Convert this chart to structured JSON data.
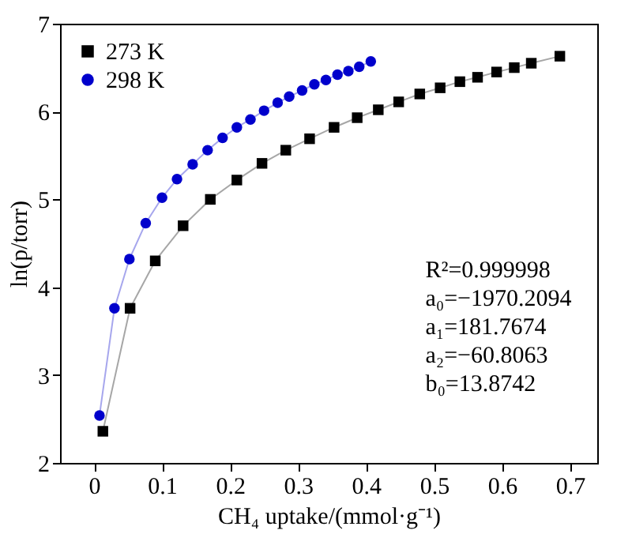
{
  "chart_data": {
    "type": "line",
    "xlabel": "CH₄ uptake/(mmol·g⁻¹)",
    "ylabel": "ln(p/torr)",
    "xlim": [
      -0.05,
      0.74
    ],
    "xticks": [
      0,
      0.1,
      0.2,
      0.3,
      0.4,
      0.5,
      0.6,
      0.7
    ],
    "ylim": [
      2,
      7
    ],
    "yticks": [
      2,
      3,
      4,
      5,
      6,
      7
    ],
    "grid": false,
    "legend": "top left",
    "line_style": "solid",
    "series": [
      {
        "name": "273 K",
        "color": "#000000",
        "marker": "square",
        "x": [
          0.013,
          0.053,
          0.09,
          0.131,
          0.171,
          0.21,
          0.247,
          0.282,
          0.317,
          0.353,
          0.387,
          0.418,
          0.448,
          0.479,
          0.509,
          0.538,
          0.564,
          0.592,
          0.618,
          0.643,
          0.685
        ],
        "values": [
          2.36,
          3.76,
          4.3,
          4.7,
          5.0,
          5.22,
          5.41,
          5.56,
          5.69,
          5.82,
          5.93,
          6.02,
          6.11,
          6.2,
          6.27,
          6.34,
          6.39,
          6.45,
          6.5,
          6.55,
          6.63
        ]
      },
      {
        "name": "298 K",
        "color": "#0000cc",
        "marker": "circle",
        "x": [
          0.008,
          0.03,
          0.052,
          0.076,
          0.1,
          0.122,
          0.145,
          0.167,
          0.189,
          0.21,
          0.23,
          0.25,
          0.27,
          0.287,
          0.306,
          0.324,
          0.341,
          0.358,
          0.374,
          0.39,
          0.407
        ],
        "values": [
          2.54,
          3.76,
          4.32,
          4.73,
          5.02,
          5.23,
          5.4,
          5.56,
          5.7,
          5.82,
          5.91,
          6.01,
          6.1,
          6.17,
          6.24,
          6.31,
          6.36,
          6.42,
          6.46,
          6.51,
          6.57
        ]
      }
    ],
    "annotations": [
      "R²=0.999998",
      "a₀=−1970.2094",
      "a₁=181.7674",
      "a₂=−60.8063",
      "b₀=13.8742"
    ]
  }
}
